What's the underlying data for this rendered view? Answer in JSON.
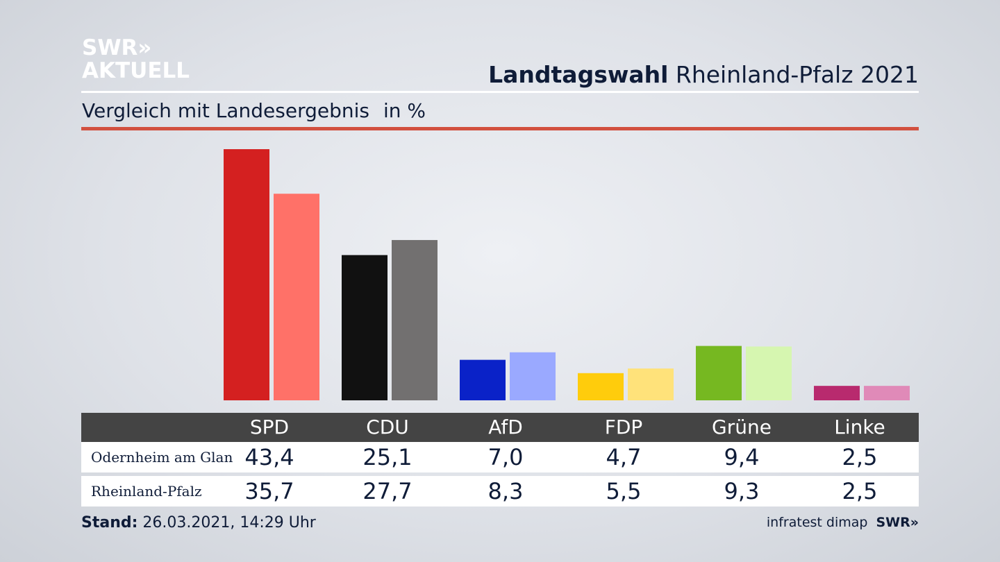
{
  "logo": {
    "line1": "SWR»",
    "line2": "AKTUELL"
  },
  "header": {
    "title_bold": "Landtagswahl",
    "title_rest": "Rheinland-Pfalz 2021"
  },
  "subtitle": {
    "text": "Vergleich mit Landesergebnis",
    "unit": "in %"
  },
  "colors": {
    "accent_rule": "#d2503f",
    "table_header": "#444444",
    "SPD": [
      "#d42020",
      "#ff7168"
    ],
    "CDU": [
      "#111111",
      "#727070"
    ],
    "AfD": [
      "#0a22c8",
      "#9aa9ff"
    ],
    "FDP": [
      "#ffcc0c",
      "#ffe27a"
    ],
    "Grüne": [
      "#76b821",
      "#d6f6b0"
    ],
    "Linke": [
      "#b82a6e",
      "#e08ab8"
    ]
  },
  "chart_data": {
    "type": "bar",
    "categories": [
      "SPD",
      "CDU",
      "AfD",
      "FDP",
      "Grüne",
      "Linke"
    ],
    "series": [
      {
        "name": "Odernheim am Glan",
        "values": [
          43.4,
          25.1,
          7.0,
          4.7,
          9.4,
          2.5
        ]
      },
      {
        "name": "Rheinland-Pfalz",
        "values": [
          35.7,
          27.7,
          8.3,
          5.5,
          9.3,
          2.5
        ]
      }
    ],
    "title": "Landtagswahl Rheinland-Pfalz 2021",
    "subtitle": "Vergleich mit Landesergebnis",
    "ylabel": "in %",
    "ylim": [
      0,
      43.4
    ],
    "grid": false
  },
  "table": {
    "headers": [
      "SPD",
      "CDU",
      "AfD",
      "FDP",
      "Grüne",
      "Linke"
    ],
    "rows": [
      {
        "label": "Odernheim am Glan",
        "values": [
          "43,4",
          "25,1",
          "7,0",
          "4,7",
          "9,4",
          "2,5"
        ]
      },
      {
        "label": "Rheinland-Pfalz",
        "values": [
          "35,7",
          "27,7",
          "8,3",
          "5,5",
          "9,3",
          "2,5"
        ]
      }
    ]
  },
  "footer": {
    "stand_label": "Stand:",
    "stand_value": "26.03.2021, 14:29 Uhr",
    "source": "infratest dimap",
    "source_logo": "SWR»"
  }
}
